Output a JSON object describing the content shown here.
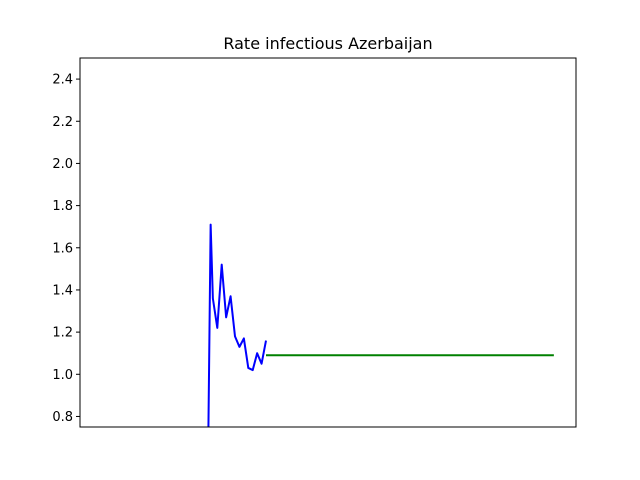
{
  "chart_data": {
    "type": "line",
    "title": "Rate infectious Azerbaijan",
    "xlabel": "",
    "ylabel": "",
    "ylim": [
      0.75,
      2.5
    ],
    "xlim": [
      0,
      112
    ],
    "y_ticks": [
      "0.8",
      "1.0",
      "1.2",
      "1.4",
      "1.6",
      "1.8",
      "2.0",
      "2.2",
      "2.4"
    ],
    "x_ticks_shown": false,
    "grid": false,
    "series": [
      {
        "color": "#0000ff",
        "x": [
          29,
          29.5,
          30,
          31,
          32,
          33,
          34,
          35,
          36,
          37,
          38,
          39,
          40,
          41,
          42
        ],
        "values": [
          0.75,
          1.71,
          1.36,
          1.22,
          1.52,
          1.27,
          1.37,
          1.18,
          1.13,
          1.17,
          1.03,
          1.02,
          1.1,
          1.05,
          1.16
        ]
      },
      {
        "color": "#008000",
        "x": [
          42,
          107
        ],
        "values": [
          1.09,
          1.09
        ]
      }
    ]
  }
}
